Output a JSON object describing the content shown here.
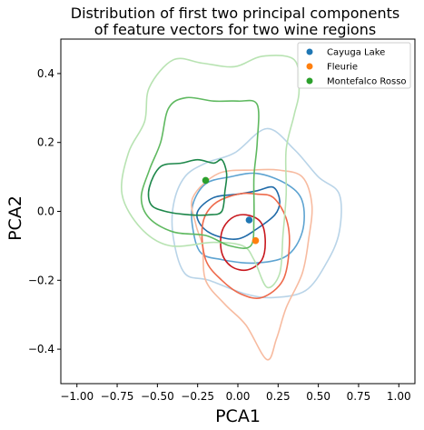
{
  "chart_data": {
    "type": "scatter",
    "title_lines": [
      "Distribution of first two principal components",
      "of feature vectors for two wine regions"
    ],
    "xlabel": "PCA1",
    "ylabel": "PCA2",
    "xlim": [
      -1.1,
      1.1
    ],
    "ylim": [
      -0.5,
      0.5
    ],
    "xticks": [
      -1.0,
      -0.75,
      -0.5,
      -0.25,
      0.0,
      0.25,
      0.5,
      0.75,
      1.0
    ],
    "xtick_labels": [
      "−1.00",
      "−0.75",
      "−0.50",
      "−0.25",
      "0.00",
      "0.25",
      "0.50",
      "0.75",
      "1.00"
    ],
    "yticks": [
      -0.4,
      -0.2,
      0.0,
      0.2,
      0.4
    ],
    "ytick_labels": [
      "−0.4",
      "−0.2",
      "0.0",
      "0.2",
      "0.4"
    ],
    "grid": false,
    "legend_position": "upper right",
    "series": [
      {
        "name": "Cayuga Lake",
        "color": "#1f77b4",
        "mean": [
          0.07,
          -0.025
        ],
        "contours": [
          {
            "level": "outer",
            "color": "#b9d4e8",
            "points": [
              [
                -0.4,
                0.02
              ],
              [
                -0.33,
                0.1
              ],
              [
                -0.2,
                0.14
              ],
              [
                -0.02,
                0.17
              ],
              [
                0.18,
                0.24
              ],
              [
                0.35,
                0.18
              ],
              [
                0.5,
                0.1
              ],
              [
                0.63,
                0.05
              ],
              [
                0.63,
                -0.06
              ],
              [
                0.55,
                -0.15
              ],
              [
                0.42,
                -0.23
              ],
              [
                0.22,
                -0.25
              ],
              [
                0.05,
                -0.24
              ],
              [
                -0.18,
                -0.2
              ],
              [
                -0.33,
                -0.18
              ],
              [
                -0.4,
                -0.08
              ]
            ]
          },
          {
            "level": "middle",
            "color": "#5da3d1",
            "points": [
              [
                -0.28,
                0.02
              ],
              [
                -0.2,
                0.08
              ],
              [
                -0.05,
                0.1
              ],
              [
                0.12,
                0.11
              ],
              [
                0.3,
                0.08
              ],
              [
                0.4,
                0.03
              ],
              [
                0.4,
                -0.06
              ],
              [
                0.3,
                -0.13
              ],
              [
                0.1,
                -0.15
              ],
              [
                -0.1,
                -0.14
              ],
              [
                -0.23,
                -0.12
              ],
              [
                -0.28,
                -0.05
              ]
            ]
          },
          {
            "level": "inner",
            "color": "#1f6aa8",
            "points": [
              [
                -0.25,
                0.0
              ],
              [
                -0.15,
                0.04
              ],
              [
                0.0,
                0.05
              ],
              [
                0.12,
                0.06
              ],
              [
                0.22,
                0.07
              ],
              [
                0.26,
                0.03
              ],
              [
                0.23,
                -0.01
              ],
              [
                0.12,
                -0.05
              ],
              [
                0.0,
                -0.08
              ],
              [
                -0.14,
                -0.07
              ],
              [
                -0.23,
                -0.04
              ]
            ]
          }
        ]
      },
      {
        "name": "Fleurie",
        "color": "#ff7f0e",
        "mean": [
          0.11,
          -0.085
        ],
        "contours": [
          {
            "level": "outer",
            "color": "#f7bba0",
            "points": [
              [
                -0.28,
                0.04
              ],
              [
                -0.12,
                0.11
              ],
              [
                0.1,
                0.12
              ],
              [
                0.25,
                0.12
              ],
              [
                0.4,
                0.1
              ],
              [
                0.46,
                0.02
              ],
              [
                0.44,
                -0.08
              ],
              [
                0.4,
                -0.18
              ],
              [
                0.3,
                -0.28
              ],
              [
                0.24,
                -0.37
              ],
              [
                0.18,
                -0.43
              ],
              [
                0.05,
                -0.33
              ],
              [
                -0.08,
                -0.27
              ],
              [
                -0.2,
                -0.2
              ],
              [
                -0.22,
                -0.1
              ],
              [
                -0.26,
                -0.04
              ]
            ]
          },
          {
            "level": "middle",
            "color": "#ee6a4b",
            "points": [
              [
                -0.22,
                -0.04
              ],
              [
                -0.15,
                0.02
              ],
              [
                0.0,
                0.05
              ],
              [
                0.12,
                0.05
              ],
              [
                0.22,
                0.04
              ],
              [
                0.3,
                -0.02
              ],
              [
                0.32,
                -0.1
              ],
              [
                0.28,
                -0.2
              ],
              [
                0.15,
                -0.25
              ],
              [
                0.02,
                -0.24
              ],
              [
                -0.1,
                -0.2
              ],
              [
                -0.2,
                -0.14
              ]
            ]
          },
          {
            "level": "inner",
            "color": "#c8181e",
            "points": [
              [
                -0.1,
                -0.06
              ],
              [
                -0.04,
                -0.02
              ],
              [
                0.05,
                -0.01
              ],
              [
                0.14,
                -0.03
              ],
              [
                0.17,
                -0.08
              ],
              [
                0.15,
                -0.14
              ],
              [
                0.06,
                -0.17
              ],
              [
                -0.04,
                -0.16
              ],
              [
                -0.1,
                -0.12
              ]
            ]
          }
        ]
      },
      {
        "name": "Montefalco Rosso",
        "color": "#2ca02c",
        "mean": [
          -0.2,
          0.09
        ],
        "contours": [
          {
            "level": "outer",
            "color": "#b8e3b2",
            "points": [
              [
                -0.72,
                0.05
              ],
              [
                -0.68,
                0.17
              ],
              [
                -0.58,
                0.26
              ],
              [
                -0.55,
                0.36
              ],
              [
                -0.4,
                0.44
              ],
              [
                -0.22,
                0.43
              ],
              [
                -0.02,
                0.42
              ],
              [
                0.15,
                0.45
              ],
              [
                0.35,
                0.44
              ],
              [
                0.38,
                0.35
              ],
              [
                0.35,
                0.28
              ],
              [
                0.3,
                0.18
              ],
              [
                0.3,
                0.05
              ],
              [
                0.28,
                -0.07
              ],
              [
                0.26,
                -0.18
              ],
              [
                0.18,
                -0.22
              ],
              [
                0.1,
                -0.14
              ],
              [
                0.03,
                -0.1
              ],
              [
                -0.15,
                -0.09
              ],
              [
                -0.42,
                -0.1
              ],
              [
                -0.6,
                -0.05
              ]
            ]
          },
          {
            "level": "middle",
            "color": "#5fb960",
            "points": [
              [
                -0.6,
                0.04
              ],
              [
                -0.55,
                0.12
              ],
              [
                -0.48,
                0.2
              ],
              [
                -0.43,
                0.3
              ],
              [
                -0.32,
                0.33
              ],
              [
                -0.15,
                0.32
              ],
              [
                0.0,
                0.32
              ],
              [
                0.12,
                0.31
              ],
              [
                0.12,
                0.2
              ],
              [
                0.1,
                0.1
              ],
              [
                0.1,
                -0.02
              ],
              [
                0.08,
                -0.1
              ],
              [
                -0.05,
                -0.1
              ],
              [
                -0.2,
                -0.07
              ],
              [
                -0.4,
                -0.06
              ],
              [
                -0.55,
                -0.02
              ]
            ]
          },
          {
            "level": "inner",
            "color": "#1d874a",
            "points": [
              [
                -0.55,
                0.07
              ],
              [
                -0.48,
                0.13
              ],
              [
                -0.35,
                0.14
              ],
              [
                -0.25,
                0.15
              ],
              [
                -0.15,
                0.14
              ],
              [
                -0.1,
                0.15
              ],
              [
                -0.07,
                0.11
              ],
              [
                -0.08,
                0.06
              ],
              [
                -0.1,
                0.0
              ],
              [
                -0.18,
                -0.01
              ],
              [
                -0.3,
                -0.01
              ],
              [
                -0.45,
                0.0
              ],
              [
                -0.54,
                0.02
              ]
            ]
          }
        ]
      }
    ]
  }
}
